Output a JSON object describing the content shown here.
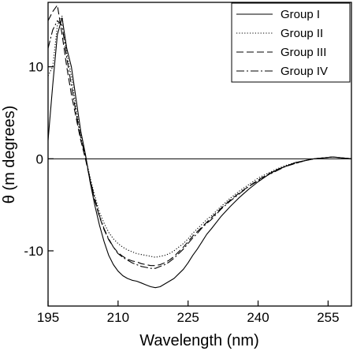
{
  "chart_data": {
    "type": "line",
    "xlabel": "Wavelength (nm)",
    "ylabel": "θ (m degrees)",
    "xlim": [
      195,
      260
    ],
    "ylim": [
      -16,
      17
    ],
    "x_ticks": [
      195,
      210,
      225,
      240,
      255
    ],
    "y_ticks": [
      10,
      0,
      -10
    ],
    "grid": false,
    "zero_line": true,
    "legend_position": "top-right",
    "series": [
      {
        "name": "Group I",
        "dash": "solid",
        "x": [
          195,
          196,
          197,
          198,
          199,
          200,
          201,
          202,
          203,
          204,
          205,
          206,
          207,
          208,
          209,
          210,
          211,
          212,
          213,
          214,
          215,
          216,
          217,
          218,
          219,
          220,
          221,
          222,
          223,
          224,
          225,
          226,
          227,
          228,
          229,
          230,
          232,
          234,
          236,
          238,
          240,
          242,
          244,
          246,
          248,
          250,
          252,
          254,
          256,
          258,
          260
        ],
        "y": [
          2.0,
          8.0,
          13.5,
          15.3,
          12.0,
          10.0,
          6.5,
          3.0,
          0.5,
          -2.5,
          -5.0,
          -7.2,
          -9.0,
          -10.5,
          -11.5,
          -12.2,
          -12.7,
          -13.0,
          -13.2,
          -13.3,
          -13.5,
          -13.7,
          -13.9,
          -14.0,
          -13.9,
          -13.6,
          -13.3,
          -13.0,
          -12.5,
          -12.0,
          -11.3,
          -10.5,
          -9.8,
          -9.0,
          -8.2,
          -7.6,
          -6.3,
          -5.2,
          -4.2,
          -3.3,
          -2.5,
          -1.8,
          -1.2,
          -0.8,
          -0.4,
          -0.2,
          0.0,
          0.1,
          0.2,
          0.1,
          0.0
        ]
      },
      {
        "name": "Group II",
        "dash": "dotted",
        "x": [
          195,
          196,
          197,
          198,
          199,
          200,
          201,
          202,
          203,
          204,
          205,
          206,
          207,
          208,
          209,
          210,
          211,
          212,
          213,
          214,
          215,
          216,
          217,
          218,
          219,
          220,
          221,
          222,
          223,
          224,
          225,
          226,
          227,
          228,
          229,
          230,
          232,
          234,
          236,
          238,
          240,
          242,
          244,
          246,
          248,
          250,
          252,
          254,
          256,
          258,
          260
        ],
        "y": [
          9.0,
          10.0,
          14.5,
          15.5,
          11.5,
          9.0,
          5.5,
          2.5,
          0.3,
          -2.0,
          -4.0,
          -5.8,
          -7.0,
          -8.0,
          -8.7,
          -9.2,
          -9.6,
          -9.9,
          -10.1,
          -10.3,
          -10.4,
          -10.5,
          -10.6,
          -10.7,
          -10.6,
          -10.5,
          -10.3,
          -10.0,
          -9.6,
          -9.2,
          -8.7,
          -8.1,
          -7.6,
          -7.1,
          -6.6,
          -6.2,
          -5.2,
          -4.3,
          -3.5,
          -2.8,
          -2.1,
          -1.6,
          -1.1,
          -0.7,
          -0.4,
          -0.2,
          0.0,
          0.1,
          0.2,
          0.1,
          0.0
        ]
      },
      {
        "name": "Group III",
        "dash": "dashed",
        "x": [
          195,
          196,
          197,
          198,
          199,
          200,
          201,
          202,
          203,
          204,
          205,
          206,
          207,
          208,
          209,
          210,
          211,
          212,
          213,
          214,
          215,
          216,
          217,
          218,
          219,
          220,
          221,
          222,
          223,
          224,
          225,
          226,
          227,
          228,
          229,
          230,
          232,
          234,
          236,
          238,
          240,
          242,
          244,
          246,
          248,
          250,
          252,
          254,
          256,
          258,
          260
        ],
        "y": [
          15.0,
          16.0,
          16.7,
          13.5,
          10.0,
          7.0,
          4.5,
          2.0,
          0.0,
          -2.3,
          -4.5,
          -6.3,
          -7.7,
          -8.8,
          -9.6,
          -10.2,
          -10.6,
          -10.9,
          -11.1,
          -11.2,
          -11.4,
          -11.5,
          -11.6,
          -11.6,
          -11.5,
          -11.3,
          -11.0,
          -10.6,
          -10.1,
          -9.6,
          -9.0,
          -8.4,
          -7.9,
          -7.4,
          -6.9,
          -6.4,
          -5.4,
          -4.5,
          -3.7,
          -3.0,
          -2.3,
          -1.7,
          -1.2,
          -0.8,
          -0.5,
          -0.2,
          0.0,
          0.1,
          0.2,
          0.1,
          0.0
        ]
      },
      {
        "name": "Group IV",
        "dash": "dashdot",
        "x": [
          195,
          196,
          197,
          198,
          199,
          200,
          201,
          202,
          203,
          204,
          205,
          206,
          207,
          208,
          209,
          210,
          211,
          212,
          213,
          214,
          215,
          216,
          217,
          218,
          219,
          220,
          221,
          222,
          223,
          224,
          225,
          226,
          227,
          228,
          229,
          230,
          232,
          234,
          236,
          238,
          240,
          242,
          244,
          246,
          248,
          250,
          252,
          254,
          256,
          258,
          260
        ],
        "y": [
          12.0,
          14.0,
          15.0,
          14.5,
          11.0,
          8.0,
          5.0,
          2.3,
          0.2,
          -2.2,
          -4.3,
          -6.2,
          -7.6,
          -8.7,
          -9.6,
          -10.3,
          -10.7,
          -11.0,
          -11.3,
          -11.5,
          -11.7,
          -11.8,
          -11.9,
          -11.9,
          -11.7,
          -11.5,
          -11.2,
          -10.8,
          -10.3,
          -9.8,
          -9.2,
          -8.6,
          -8.1,
          -7.5,
          -7.0,
          -6.6,
          -5.5,
          -4.6,
          -3.8,
          -3.0,
          -2.4,
          -1.8,
          -1.3,
          -0.8,
          -0.5,
          -0.2,
          0.0,
          0.1,
          0.2,
          0.1,
          0.0
        ]
      }
    ]
  }
}
